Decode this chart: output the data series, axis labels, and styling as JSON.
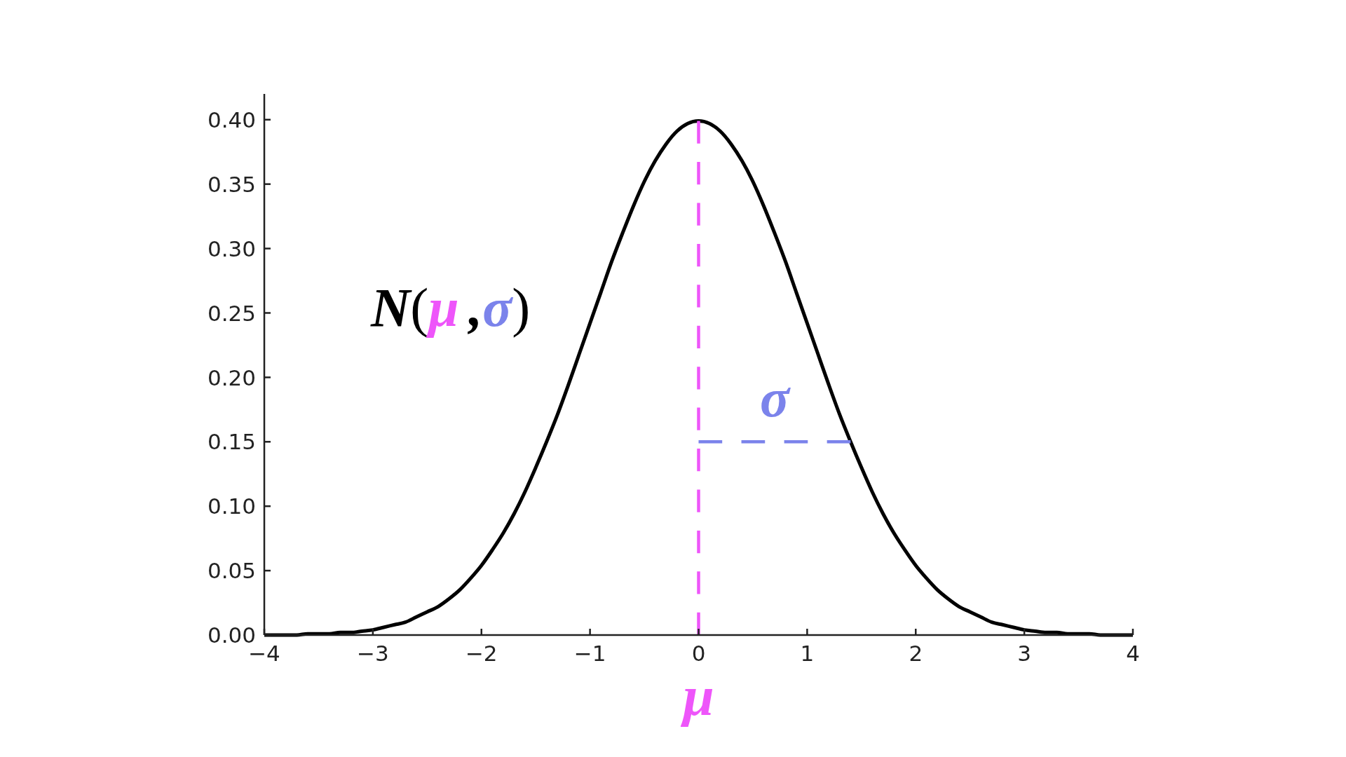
{
  "chart_data": {
    "type": "line",
    "annotations": [
      "N(μ,σ)"
    ],
    "xlim": [
      -4,
      4
    ],
    "xticks": [
      {
        "value": -4,
        "label": "−4"
      },
      {
        "value": -3,
        "label": "−3"
      },
      {
        "value": -2,
        "label": "−2"
      },
      {
        "value": -1,
        "label": "−1"
      },
      0,
      1,
      2,
      3,
      4
    ],
    "ylim": [
      0,
      0.42
    ],
    "yticks": [
      {
        "value": 0,
        "label": "0.00"
      },
      {
        "value": 0.05,
        "label": "0.05"
      },
      {
        "value": 0.1,
        "label": "0.10"
      },
      {
        "value": 0.15,
        "label": "0.15"
      },
      {
        "value": 0.2,
        "label": "0.20"
      },
      {
        "value": 0.25,
        "label": "0.25"
      },
      {
        "value": 0.3,
        "label": "0.30"
      },
      {
        "value": 0.35,
        "label": "0.35"
      },
      {
        "value": 0.4,
        "label": "0.40"
      }
    ],
    "series": [
      {
        "color": "#000000",
        "x": [
          -4,
          -3.9,
          -3.8,
          -3.7,
          -3.6,
          -3.5,
          -3.4,
          -3.3,
          -3.2,
          -3.1,
          -3,
          -2.9,
          -2.8,
          -2.7,
          -2.6,
          -2.5,
          -2.4,
          -2.3,
          -2.2,
          -2.1,
          -2,
          -1.9,
          -1.8,
          -1.7,
          -1.6,
          -1.5,
          -1.4,
          -1.3,
          -1.2,
          -1.1,
          -1,
          -0.9,
          -0.8,
          -0.7,
          -0.6,
          -0.5,
          -0.4,
          -0.3,
          -0.2,
          -0.1,
          0,
          0.1,
          0.2,
          0.3,
          0.4,
          0.5,
          0.6,
          0.7,
          0.8,
          0.9,
          1,
          1.1,
          1.2,
          1.3,
          1.4,
          1.5,
          1.6,
          1.7,
          1.8,
          1.9,
          2,
          2.1,
          2.2,
          2.3,
          2.4,
          2.5,
          2.6,
          2.7,
          2.8,
          2.9,
          3,
          3.1,
          3.2,
          3.3,
          3.4,
          3.5,
          3.6,
          3.7,
          3.8,
          3.9,
          4
        ],
        "values": [
          0.0,
          0.0,
          0.0,
          0.0,
          0.001,
          0.001,
          0.001,
          0.002,
          0.002,
          0.003,
          0.004,
          0.006,
          0.008,
          0.01,
          0.014,
          0.018,
          0.022,
          0.028,
          0.035,
          0.044,
          0.054,
          0.066,
          0.079,
          0.094,
          0.111,
          0.13,
          0.15,
          0.171,
          0.194,
          0.218,
          0.242,
          0.266,
          0.29,
          0.312,
          0.333,
          0.352,
          0.368,
          0.381,
          0.391,
          0.397,
          0.399,
          0.397,
          0.391,
          0.381,
          0.368,
          0.352,
          0.333,
          0.312,
          0.29,
          0.266,
          0.242,
          0.218,
          0.194,
          0.171,
          0.15,
          0.13,
          0.111,
          0.094,
          0.079,
          0.066,
          0.054,
          0.044,
          0.035,
          0.028,
          0.022,
          0.018,
          0.014,
          0.01,
          0.008,
          0.006,
          0.004,
          0.003,
          0.002,
          0.002,
          0.001,
          0.001,
          0.001,
          0.0,
          0.0,
          0.0,
          0.0
        ]
      },
      {
        "name": "μ",
        "color": "#ee55fa",
        "x": [
          0,
          0
        ],
        "values": [
          0,
          0.399
        ],
        "line_style": "dashed"
      },
      {
        "name": "σ",
        "color": "#7b83eb",
        "x": [
          0,
          1.4
        ],
        "values": [
          0.15,
          0.15
        ],
        "line_style": "dashed"
      }
    ]
  }
}
